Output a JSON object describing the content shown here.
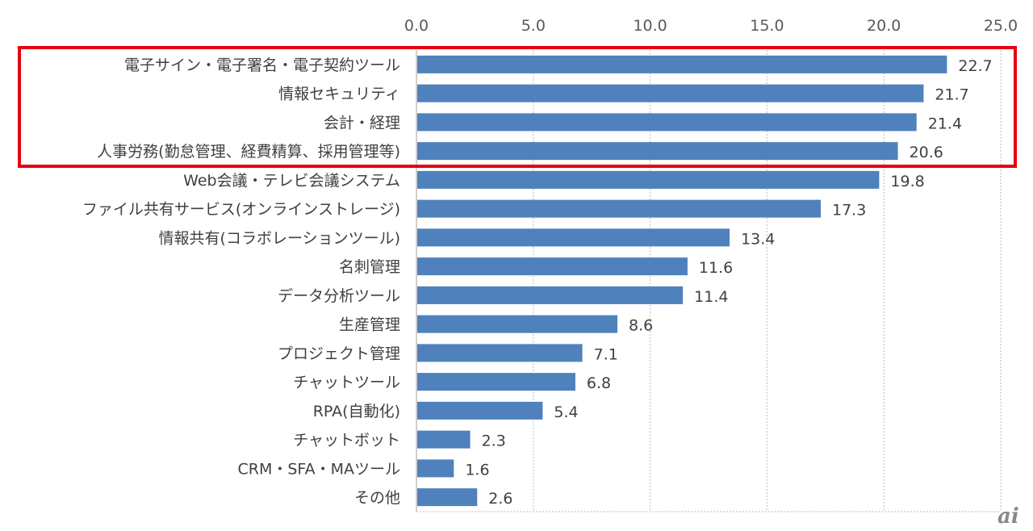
{
  "chart_data": {
    "type": "bar",
    "orientation": "horizontal",
    "title": "",
    "xlabel": "",
    "ylabel": "",
    "xlim": [
      0,
      25
    ],
    "x_ticks": [
      "0.0",
      "5.0",
      "10.0",
      "15.0",
      "20.0",
      "25.0"
    ],
    "x_axis_position": "top",
    "grid": true,
    "categories": [
      "電子サイン・電子署名・電子契約ツール",
      "情報セキュリティ",
      "会計・経理",
      "人事労務(勤怠管理、経費精算、採用管理等)",
      "Web会議・テレビ会議システム",
      "ファイル共有サービス(オンラインストレージ)",
      "情報共有(コラボレーションツール)",
      "名刺管理",
      "データ分析ツール",
      "生産管理",
      "プロジェクト管理",
      "チャットツール",
      "RPA(自動化)",
      "チャットボット",
      "CRM・SFA・MAツール",
      "その他"
    ],
    "values": [
      22.7,
      21.7,
      21.4,
      20.6,
      19.8,
      17.3,
      13.4,
      11.6,
      11.4,
      8.6,
      7.1,
      6.8,
      5.4,
      2.3,
      1.6,
      2.6
    ],
    "value_labels": [
      "22.7",
      "21.7",
      "21.4",
      "20.6",
      "19.8",
      "17.3",
      "13.4",
      "11.6",
      "11.4",
      "8.6",
      "7.1",
      "6.8",
      "5.4",
      "2.3",
      "1.6",
      "2.6"
    ],
    "bar_color": "#4f81bd",
    "highlight": {
      "categories_highlighted": 4,
      "color": "#e60012"
    }
  },
  "logo": {
    "text": "ai"
  }
}
